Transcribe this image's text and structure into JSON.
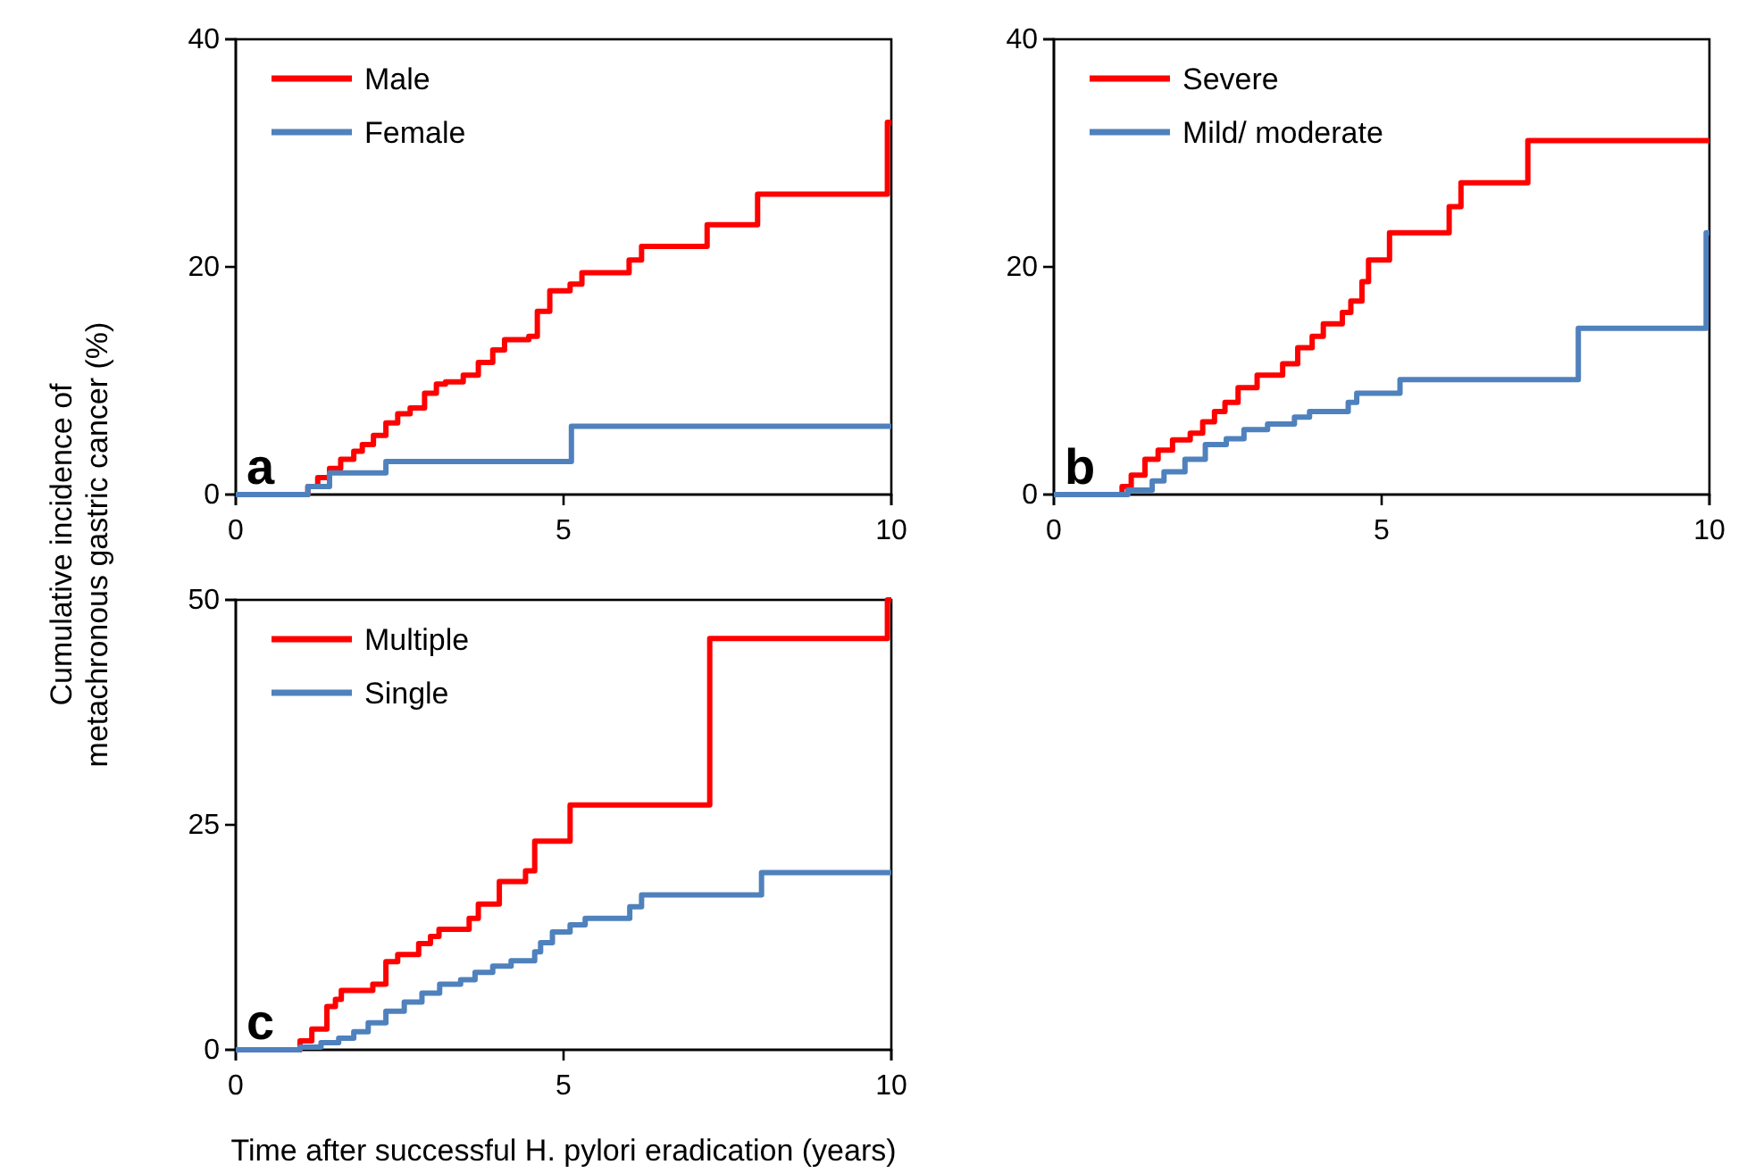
{
  "chart_data": [
    {
      "type": "step",
      "title": "a",
      "ylabel": "Cumulative incidence of metachronous gastric cancer (%)",
      "xlim": [
        0,
        10
      ],
      "xticks": [
        0,
        5,
        10
      ],
      "ylim": [
        0,
        40
      ],
      "yticks": [
        0,
        20,
        40
      ],
      "legend": "top left",
      "grid": false,
      "series": [
        {
          "name": "Male",
          "color": "#ff0000",
          "x": [
            0,
            1.0,
            1.1,
            1.25,
            1.43,
            1.6,
            1.8,
            1.93,
            2.1,
            2.29,
            2.47,
            2.66,
            2.88,
            3.06,
            3.2,
            3.47,
            3.7,
            3.92,
            4.1,
            4.47,
            4.6,
            4.79,
            5.1,
            5.28,
            6.0,
            6.19,
            7.19,
            7.96,
            9.94,
            10
          ],
          "values": [
            0,
            0,
            0.7,
            1.5,
            2.3,
            3.1,
            3.8,
            4.4,
            5.2,
            6.3,
            7.1,
            7.6,
            8.9,
            9.7,
            9.9,
            10.5,
            11.6,
            12.7,
            13.6,
            13.9,
            16.1,
            17.9,
            18.5,
            19.5,
            20.6,
            21.8,
            23.7,
            26.4,
            32.7,
            32.7
          ]
        },
        {
          "name": "Female",
          "color": "#4f81bd",
          "x": [
            0,
            1.0,
            1.1,
            1.43,
            2.29,
            5.12,
            10
          ],
          "values": [
            0,
            0,
            0.7,
            1.9,
            2.9,
            6.0,
            6.0
          ]
        }
      ]
    },
    {
      "type": "step",
      "title": "b",
      "xlim": [
        0,
        10
      ],
      "xticks": [
        0,
        5,
        10
      ],
      "ylim": [
        0,
        40
      ],
      "yticks": [
        0,
        20,
        40
      ],
      "legend": "top left",
      "grid": false,
      "series": [
        {
          "name": "Severe",
          "color": "#ff0000",
          "x": [
            0,
            0.95,
            1.04,
            1.18,
            1.39,
            1.59,
            1.81,
            2.08,
            2.27,
            2.45,
            2.61,
            2.81,
            3.1,
            3.49,
            3.72,
            3.94,
            4.11,
            4.4,
            4.53,
            4.7,
            4.8,
            5.12,
            6.03,
            6.21,
            7.23,
            10
          ],
          "values": [
            0,
            0,
            0.7,
            1.7,
            3.1,
            3.9,
            4.8,
            5.4,
            6.4,
            7.3,
            8.1,
            9.4,
            10.5,
            11.5,
            12.9,
            13.9,
            15.0,
            16.0,
            17.0,
            18.7,
            20.6,
            23.0,
            25.3,
            27.4,
            31.1,
            31.1
          ]
        },
        {
          "name": "Mild/ moderate",
          "color": "#4f81bd",
          "x": [
            0,
            1.09,
            1.13,
            1.5,
            1.68,
            2.0,
            2.31,
            2.63,
            2.9,
            3.26,
            3.67,
            3.9,
            4.49,
            4.62,
            5.28,
            8.0,
            9.95,
            10
          ],
          "values": [
            0,
            0,
            0.4,
            1.2,
            2.0,
            3.1,
            4.4,
            4.9,
            5.7,
            6.2,
            6.8,
            7.3,
            8.1,
            8.9,
            10.1,
            14.6,
            23.0,
            23.0
          ]
        }
      ]
    },
    {
      "type": "step",
      "title": "c",
      "xlabel": "Time after successful H. pylori eradication (years)",
      "xlim": [
        0,
        10
      ],
      "xticks": [
        0,
        5,
        10
      ],
      "ylim": [
        0,
        50
      ],
      "yticks": [
        0,
        25,
        50
      ],
      "legend": "top left",
      "grid": false,
      "series": [
        {
          "name": "Multiple",
          "color": "#ff0000",
          "x": [
            0,
            0.98,
            1.16,
            1.39,
            1.52,
            1.61,
            2.09,
            2.29,
            2.47,
            2.79,
            2.97,
            3.1,
            3.56,
            3.7,
            4.02,
            4.42,
            4.56,
            5.1,
            7.23,
            9.94,
            10
          ],
          "values": [
            0,
            1.0,
            2.3,
            4.8,
            5.6,
            6.6,
            7.3,
            9.8,
            10.6,
            11.8,
            12.6,
            13.4,
            14.6,
            16.2,
            18.7,
            19.9,
            23.2,
            27.2,
            45.7,
            50,
            50
          ]
        },
        {
          "name": "Single",
          "color": "#4f81bd",
          "x": [
            0,
            0.98,
            1.3,
            1.57,
            1.8,
            2.02,
            2.29,
            2.57,
            2.84,
            3.11,
            3.43,
            3.65,
            3.92,
            4.2,
            4.56,
            4.65,
            4.83,
            5.1,
            5.33,
            6.01,
            6.19,
            8.02,
            10
          ],
          "values": [
            0,
            0.3,
            0.8,
            1.3,
            2.0,
            3.0,
            4.3,
            5.3,
            6.3,
            7.3,
            7.8,
            8.6,
            9.3,
            9.9,
            10.9,
            11.9,
            13.1,
            13.9,
            14.6,
            15.9,
            17.2,
            19.7,
            19.7
          ]
        }
      ]
    }
  ]
}
